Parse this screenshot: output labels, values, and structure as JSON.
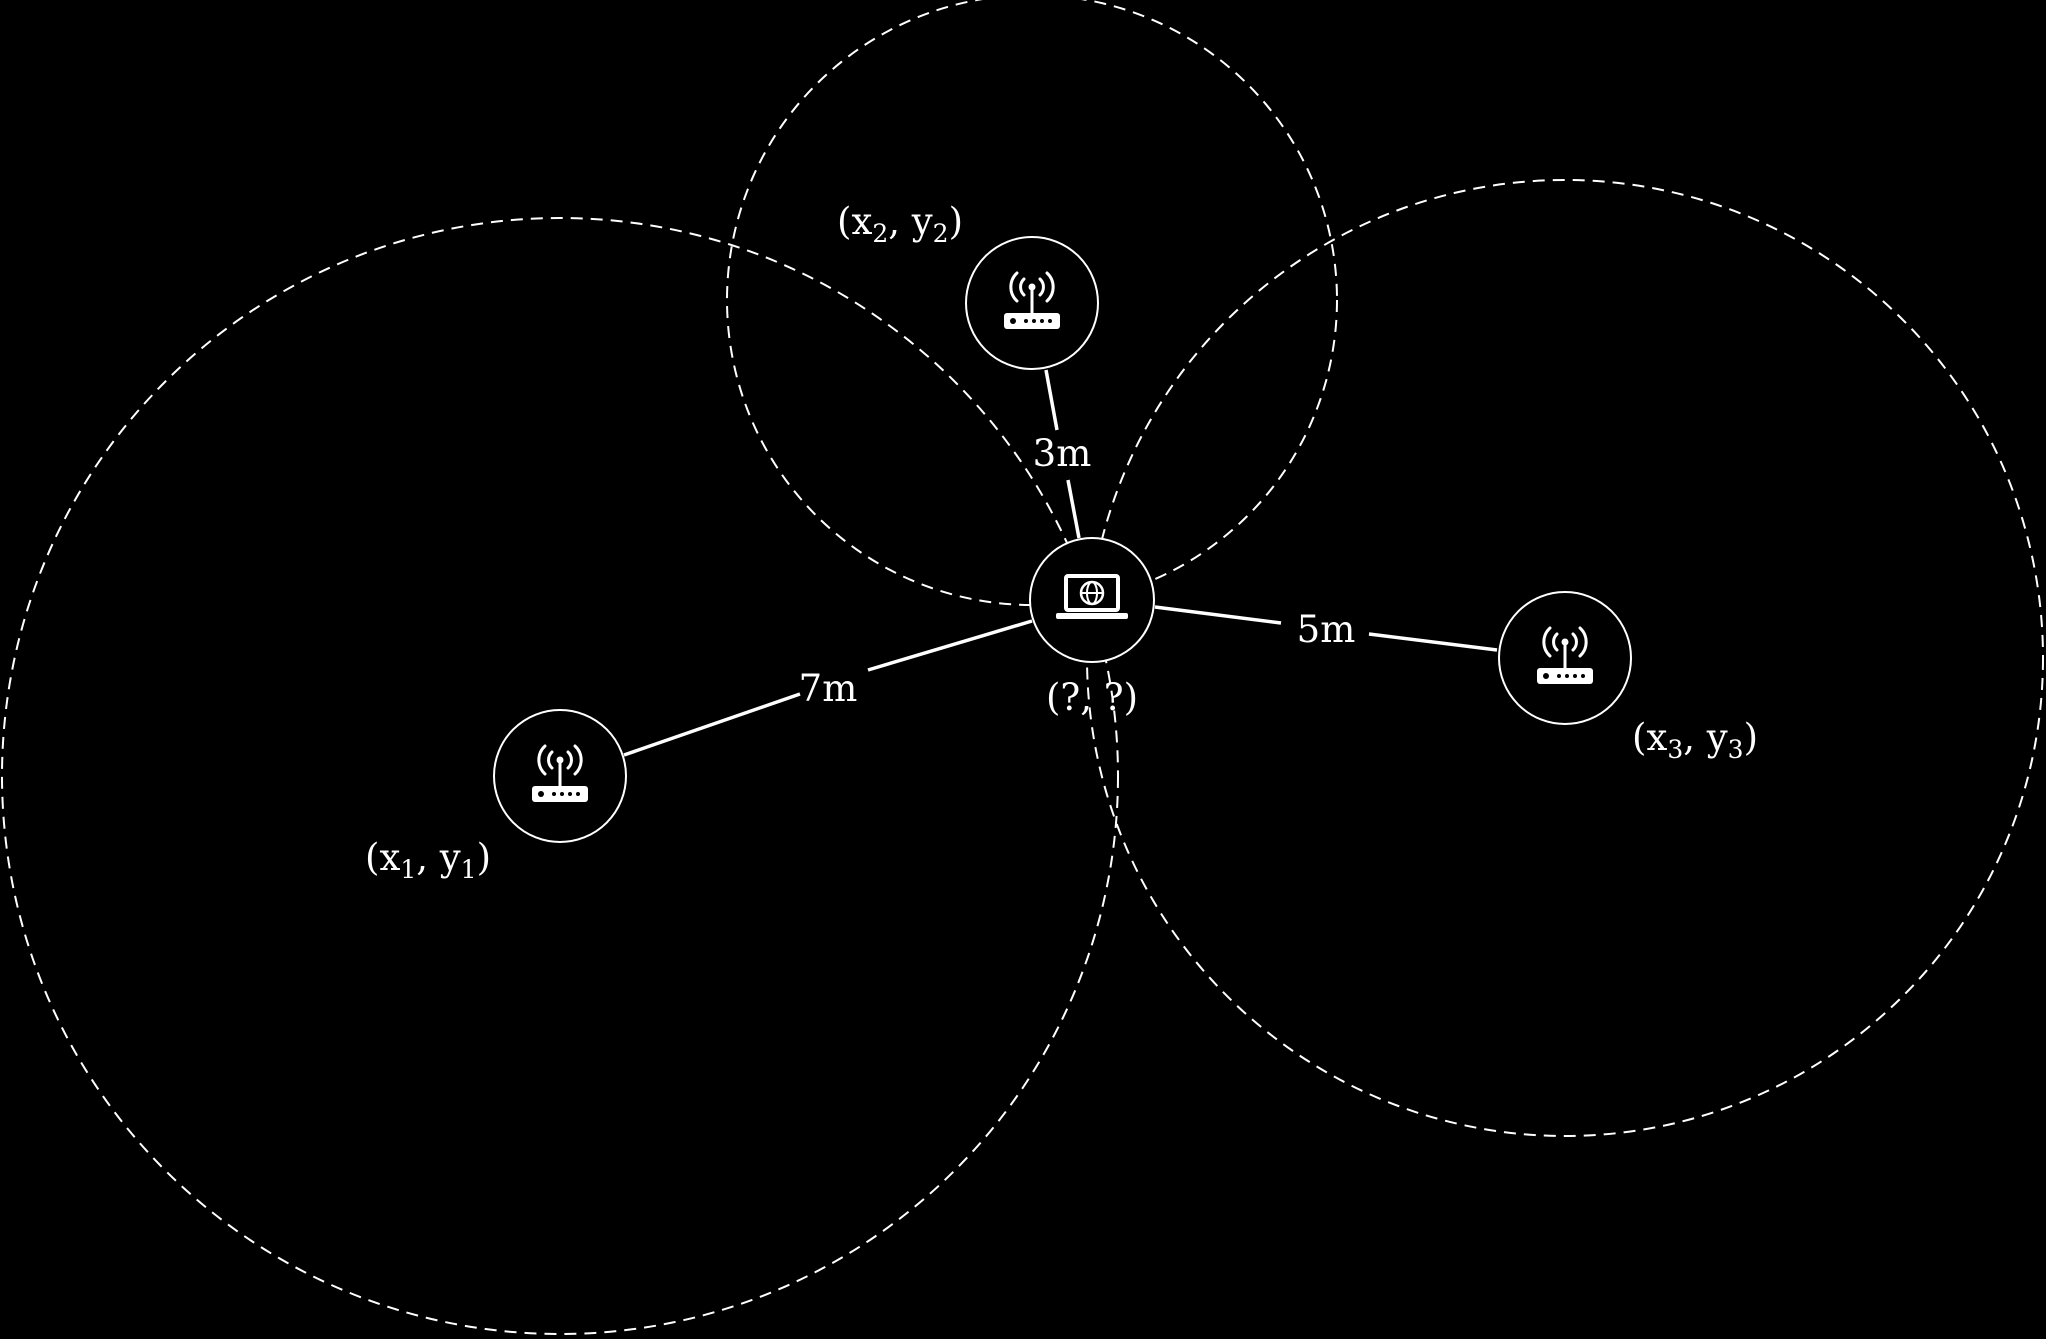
{
  "diagram": {
    "title_hidden": false,
    "access_points": [
      {
        "id": "ap1",
        "label": "(x1, y1)",
        "var_x": "x",
        "var_y": "y",
        "index": "1",
        "icon": "router-icon",
        "distance": "7m"
      },
      {
        "id": "ap2",
        "label": "(x2, y2)",
        "var_x": "x",
        "var_y": "y",
        "index": "2",
        "icon": "router-icon",
        "distance": "3m"
      },
      {
        "id": "ap3",
        "label": "(x3, y3)",
        "var_x": "x",
        "var_y": "y",
        "index": "3",
        "icon": "router-icon",
        "distance": "5m"
      }
    ],
    "device": {
      "label": "(?, ?)",
      "icon": "laptop-globe-icon"
    }
  },
  "colors": {
    "background": "#000000",
    "foreground": "#ffffff"
  }
}
